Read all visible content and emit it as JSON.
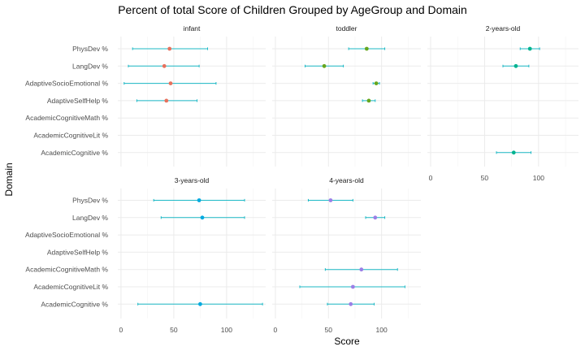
{
  "chart_data": {
    "type": "scatter",
    "title": "Percent of total Score of Children Grouped by AgeGroup and Domain",
    "xlabel": "Score",
    "ylabel": "Domain",
    "xlim": [
      -3,
      137
    ],
    "x_ticks": [
      0,
      50,
      100
    ],
    "grid": true,
    "domains": [
      "PhysDev %",
      "LangDev %",
      "AdaptiveSocioEmotional %",
      "AdaptiveSelfHelp %",
      "AcademicCognitiveMath %",
      "AcademicCognitiveLit %",
      "AcademicCognitive %"
    ],
    "colors": {
      "infant": "#e7715d",
      "toddler": "#66a61e",
      "2-years-old": "#00b38f",
      "3-years-old": "#00a9e0",
      "4-years-old": "#9b7fe6",
      "errorbar": "#1cb9c6"
    },
    "panels": [
      {
        "name": "infant",
        "points": [
          {
            "domain": "PhysDev %",
            "mean": 46,
            "low": 11,
            "high": 82
          },
          {
            "domain": "LangDev %",
            "mean": 41,
            "low": 7,
            "high": 74
          },
          {
            "domain": "AdaptiveSocioEmotional %",
            "mean": 47,
            "low": 3,
            "high": 90
          },
          {
            "domain": "AdaptiveSelfHelp %",
            "mean": 43,
            "low": 15,
            "high": 72
          }
        ]
      },
      {
        "name": "toddler",
        "points": [
          {
            "domain": "PhysDev %",
            "mean": 86,
            "low": 69,
            "high": 103
          },
          {
            "domain": "LangDev %",
            "mean": 46,
            "low": 28,
            "high": 64
          },
          {
            "domain": "AdaptiveSocioEmotional %",
            "mean": 95,
            "low": 92,
            "high": 98
          },
          {
            "domain": "AdaptiveSelfHelp %",
            "mean": 88,
            "low": 82,
            "high": 94
          }
        ]
      },
      {
        "name": "2-years-old",
        "points": [
          {
            "domain": "PhysDev %",
            "mean": 92,
            "low": 83,
            "high": 101
          },
          {
            "domain": "LangDev %",
            "mean": 79,
            "low": 67,
            "high": 91
          },
          {
            "domain": "AcademicCognitive %",
            "mean": 77,
            "low": 61,
            "high": 93
          }
        ]
      },
      {
        "name": "3-years-old",
        "points": [
          {
            "domain": "PhysDev %",
            "mean": 74,
            "low": 31,
            "high": 117
          },
          {
            "domain": "LangDev %",
            "mean": 77,
            "low": 38,
            "high": 117
          },
          {
            "domain": "AcademicCognitive %",
            "mean": 75,
            "low": 16,
            "high": 134
          }
        ]
      },
      {
        "name": "4-years-old",
        "points": [
          {
            "domain": "PhysDev %",
            "mean": 52,
            "low": 31,
            "high": 73
          },
          {
            "domain": "LangDev %",
            "mean": 94,
            "low": 85,
            "high": 103
          },
          {
            "domain": "AcademicCognitiveMath %",
            "mean": 81,
            "low": 47,
            "high": 115
          },
          {
            "domain": "AcademicCognitiveLit %",
            "mean": 73,
            "low": 23,
            "high": 122
          },
          {
            "domain": "AcademicCognitive %",
            "mean": 71,
            "low": 49,
            "high": 93
          }
        ]
      }
    ]
  }
}
